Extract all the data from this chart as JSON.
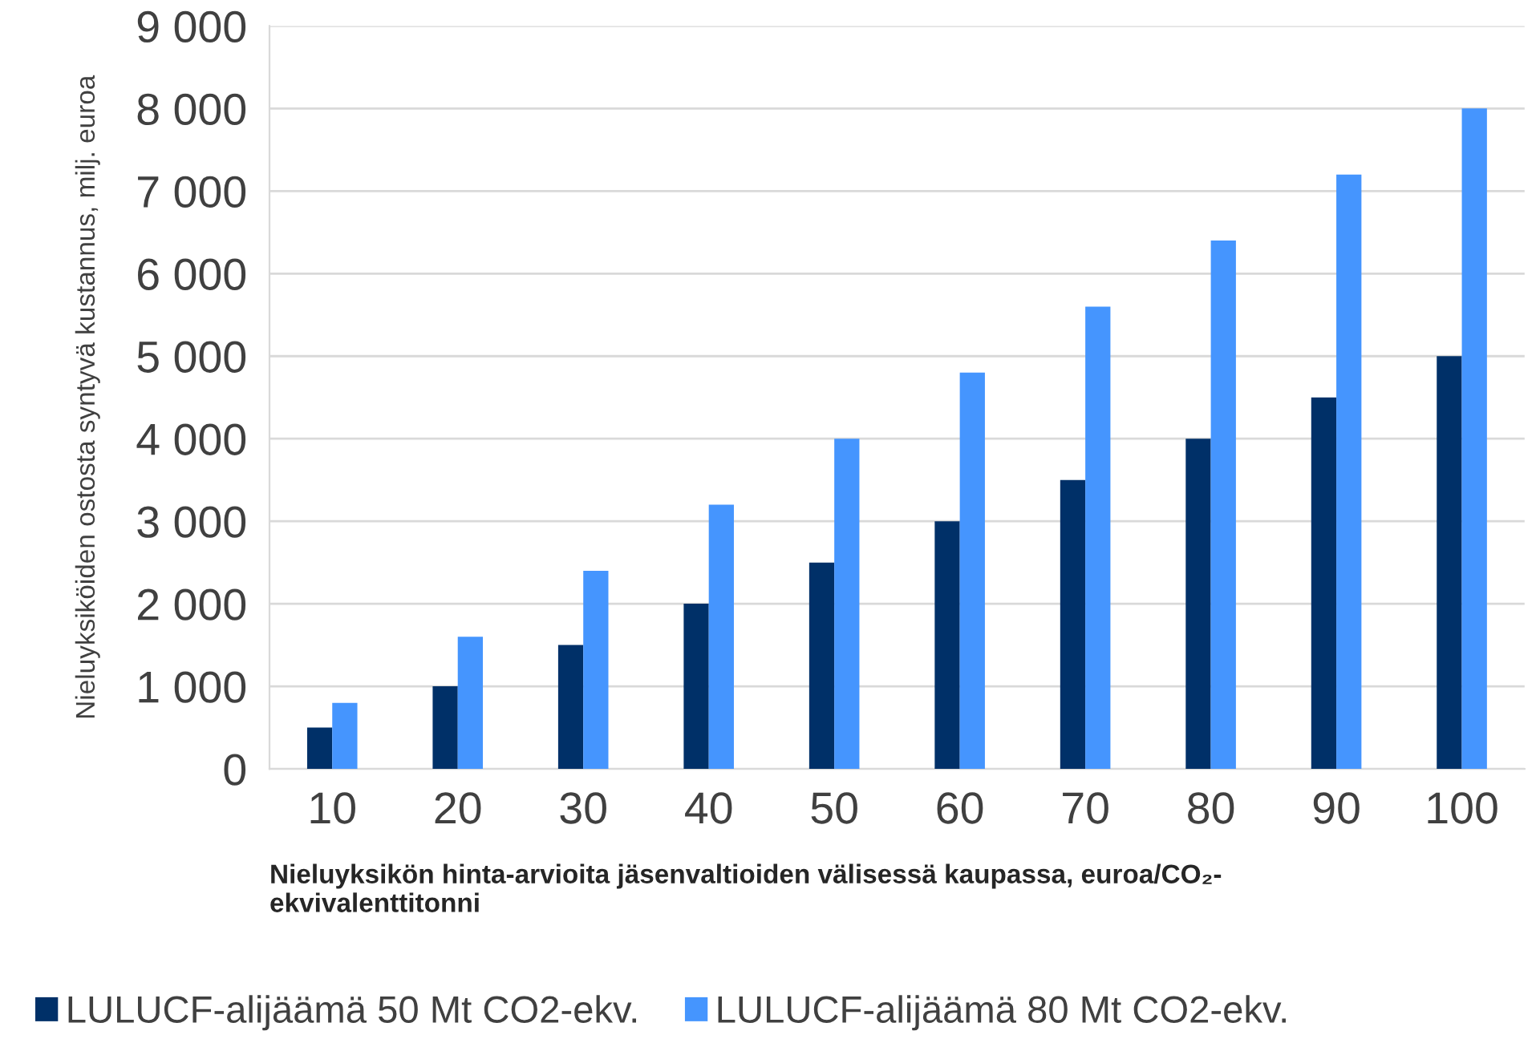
{
  "chart_data": {
    "type": "bar",
    "categories": [
      "10",
      "20",
      "30",
      "40",
      "50",
      "60",
      "70",
      "80",
      "90",
      "100"
    ],
    "series": [
      {
        "name": "LULUCF-alijäämä 50 Mt CO2-ekv.",
        "color": "#003068",
        "values": [
          500,
          1000,
          1500,
          2000,
          2500,
          3000,
          3500,
          4000,
          4500,
          5000
        ]
      },
      {
        "name": "LULUCF-alijäämä 80 Mt CO2-ekv.",
        "color": "#4595fe",
        "values": [
          800,
          1600,
          2400,
          3200,
          4000,
          4800,
          5600,
          6400,
          7200,
          8000
        ]
      }
    ],
    "xlabel": "Nieluyksikön hinta-arvioita jäsenvaltioiden välisessä kaupassa, euroa/CO₂-\nekvivalenttitonni",
    "ylabel": "Nieluyksiköiden ostosta syntyvä kustannus, milj. euroa",
    "ylim": [
      0,
      9000
    ],
    "yticks": [
      {
        "value": 0,
        "label": "0"
      },
      {
        "value": 1000,
        "label": "1 000"
      },
      {
        "value": 2000,
        "label": "2 000"
      },
      {
        "value": 3000,
        "label": "3 000"
      },
      {
        "value": 4000,
        "label": "4 000"
      },
      {
        "value": 5000,
        "label": "5 000"
      },
      {
        "value": 6000,
        "label": "6 000"
      },
      {
        "value": 7000,
        "label": "7 000"
      },
      {
        "value": 8000,
        "label": "8 000"
      },
      {
        "value": 9000,
        "label": "9 000"
      }
    ],
    "grid": "y",
    "legend": "bottom"
  }
}
